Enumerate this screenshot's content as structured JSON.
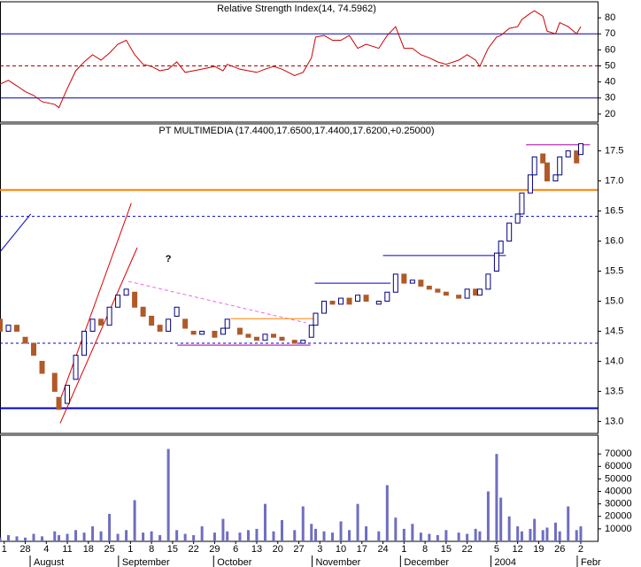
{
  "chart_data": [
    {
      "type": "line",
      "title": "Relative Strength Index(14, 74.5962)",
      "color": "#cc0000",
      "xlim": [
        -1,
        141
      ],
      "ylim": [
        15,
        90
      ],
      "yticks": [
        20,
        30,
        40,
        50,
        60,
        70,
        80
      ],
      "hlines": [
        {
          "value": 70,
          "color": "#0000aa",
          "dash": "none"
        },
        {
          "value": 50,
          "color": "#aa0000",
          "dash": "4 3"
        },
        {
          "value": 30,
          "color": "#0000aa",
          "dash": "none"
        }
      ],
      "x": [
        -1,
        1,
        3,
        5,
        7,
        9,
        12,
        13,
        15,
        17,
        19,
        21,
        23,
        25,
        27,
        29,
        31,
        33,
        35,
        37,
        39,
        41,
        43,
        45,
        47,
        50,
        52,
        53,
        56,
        58,
        60,
        62,
        64,
        66,
        69,
        71,
        73,
        74,
        76,
        78,
        80,
        82,
        84,
        86,
        89,
        91,
        93,
        95,
        97,
        99,
        101,
        103,
        105,
        108,
        110,
        112,
        113,
        115,
        117,
        118,
        120,
        122,
        123,
        125,
        126,
        128,
        129,
        131,
        132,
        134,
        136,
        137
      ],
      "values": [
        38.7,
        41,
        37.6,
        34,
        31.6,
        27.7,
        26,
        24,
        36,
        47,
        52.5,
        57,
        53.6,
        58,
        63.5,
        66,
        57,
        51,
        49.7,
        47,
        48,
        52.5,
        46,
        47,
        48,
        49.7,
        47,
        51,
        48,
        47,
        46,
        48,
        49.7,
        48,
        44,
        46,
        55,
        68,
        69,
        66,
        66,
        69,
        61,
        63.5,
        61,
        69,
        74.5,
        61,
        61,
        57,
        55,
        52.5,
        51,
        53.6,
        57,
        53.6,
        49.7,
        61,
        68,
        69,
        73.4,
        74.5,
        79,
        82.8,
        84.4,
        81,
        71.7,
        70,
        77,
        74.5,
        70,
        74.5
      ]
    },
    {
      "type": "candlestick",
      "title": "PT MULTIMEDIA (17.4400,17.6500,17.4400,17.6200,+0.25000)",
      "up_color": "#ffffff",
      "down_color": "#b05a28",
      "outline_color": "#000080",
      "xlim": [
        -1,
        141
      ],
      "ylim": [
        12.8,
        17.95
      ],
      "yticks": [
        {
          "value": 13,
          "label": "13.0"
        },
        13.5,
        {
          "value": 14,
          "label": "14.0"
        },
        14.5,
        {
          "value": 15,
          "label": "15.0"
        },
        15.5,
        {
          "value": 16,
          "label": "16.0"
        },
        16.5,
        {
          "value": 17,
          "label": "17.0"
        },
        17.5
      ],
      "hlines": [
        {
          "value": 16.85,
          "color": "#ff8000",
          "dash": "none",
          "width": 2
        },
        {
          "value": 16.41,
          "color": "#0000cc",
          "dash": "3 3",
          "width": 1
        },
        {
          "value": 14.3,
          "color": "#0000cc",
          "dash": "3 3",
          "width": 1
        },
        {
          "value": 13.22,
          "color": "#0000cc",
          "dash": "none",
          "width": 2
        }
      ],
      "trend_lines": [
        {
          "x": [
            12.7,
            30.2
          ],
          "y": [
            13.24,
            16.63
          ],
          "color": "#dd0000",
          "dash": "none"
        },
        {
          "x": [
            13.3,
            31.6
          ],
          "y": [
            12.97,
            15.89
          ],
          "color": "#dd0000",
          "dash": "none"
        },
        {
          "x": [
            -1,
            6.3
          ],
          "y": [
            15.82,
            16.45
          ],
          "color": "#0000cc",
          "dash": "none"
        },
        {
          "x": [
            29.5,
            71.7
          ],
          "y": [
            15.33,
            14.64
          ],
          "color": "#ee66ee",
          "dash": "4 3"
        },
        {
          "x": [
            41.1,
            72.8
          ],
          "y": [
            14.27,
            14.27
          ],
          "color": "#aa00aa",
          "dash": "none"
        },
        {
          "x": [
            53.8,
            73.8
          ],
          "y": [
            14.71,
            14.71
          ],
          "color": "#ff8000",
          "dash": "none"
        },
        {
          "x": [
            73.8,
            91.8
          ],
          "y": [
            15.3,
            15.3
          ],
          "color": "#0000cc",
          "dash": "none"
        },
        {
          "x": [
            90,
            119.2
          ],
          "y": [
            15.76,
            15.76
          ],
          "color": "#0000cc",
          "dash": "none"
        },
        {
          "x": [
            124,
            139.2
          ],
          "y": [
            17.6,
            17.6
          ],
          "color": "#aa00aa",
          "dash": "none"
        }
      ],
      "annotations": [
        {
          "text": "?",
          "x": 39,
          "y": 15.7,
          "color": "#dd0000"
        }
      ],
      "x": [
        -1,
        1,
        3,
        5,
        7,
        9,
        12,
        13,
        15,
        17,
        19,
        21,
        23,
        25,
        27,
        29,
        31,
        33,
        35,
        37,
        39,
        41,
        43,
        45,
        47,
        50,
        52,
        53,
        56,
        58,
        60,
        62,
        64,
        66,
        69,
        71,
        73,
        74,
        76,
        78,
        80,
        82,
        84,
        86,
        89,
        91,
        93,
        95,
        97,
        99,
        101,
        103,
        105,
        108,
        110,
        112,
        113,
        115,
        117,
        118,
        120,
        122,
        123,
        125,
        126,
        128,
        129,
        131,
        132,
        134,
        136,
        137
      ],
      "open": [
        14.7,
        14.5,
        14.6,
        14.4,
        14.3,
        14.0,
        13.8,
        13.4,
        13.3,
        13.7,
        14.1,
        14.5,
        14.7,
        14.6,
        14.9,
        15.1,
        15.15,
        14.9,
        14.75,
        14.6,
        14.5,
        14.75,
        14.7,
        14.5,
        14.45,
        14.5,
        14.45,
        14.55,
        14.55,
        14.45,
        14.4,
        14.35,
        14.45,
        14.4,
        14.35,
        14.3,
        14.4,
        14.6,
        14.8,
        15.0,
        14.95,
        15.05,
        15.0,
        15.1,
        14.95,
        15.0,
        15.15,
        15.45,
        15.3,
        15.35,
        15.25,
        15.2,
        15.15,
        15.1,
        15.05,
        15.2,
        15.1,
        15.2,
        15.5,
        15.8,
        16.0,
        16.3,
        16.45,
        16.8,
        17.1,
        17.45,
        17.3,
        17.0,
        17.1,
        17.4,
        17.5,
        17.44
      ],
      "close": [
        14.5,
        14.6,
        14.5,
        14.3,
        14.1,
        13.8,
        13.5,
        13.2,
        13.6,
        14.1,
        14.5,
        14.7,
        14.6,
        14.9,
        15.1,
        15.2,
        14.9,
        14.75,
        14.6,
        14.5,
        14.7,
        14.9,
        14.55,
        14.45,
        14.5,
        14.4,
        14.55,
        14.7,
        14.45,
        14.4,
        14.35,
        14.45,
        14.4,
        14.35,
        14.3,
        14.35,
        14.6,
        14.8,
        15.0,
        14.95,
        15.05,
        14.95,
        15.1,
        15.0,
        15.0,
        15.15,
        15.45,
        15.3,
        15.35,
        15.25,
        15.2,
        15.15,
        15.1,
        15.05,
        15.2,
        15.1,
        15.2,
        15.45,
        15.8,
        16.0,
        16.3,
        16.45,
        16.8,
        17.1,
        17.4,
        17.3,
        17.0,
        17.1,
        17.4,
        17.5,
        17.3,
        17.62
      ]
    },
    {
      "type": "bar",
      "color": "#6e6ec0",
      "xlim": [
        -1,
        141
      ],
      "ylim": [
        0,
        85000
      ],
      "yticks": [
        10000,
        20000,
        30000,
        40000,
        50000,
        60000,
        70000
      ],
      "xticks": [
        {
          "value": 0,
          "label": "1"
        },
        {
          "value": 5,
          "label": "28"
        },
        {
          "value": 10,
          "label": "4"
        },
        {
          "value": 15,
          "label": "11"
        },
        {
          "value": 20,
          "label": "18"
        },
        {
          "value": 25,
          "label": "25"
        },
        {
          "value": 30,
          "label": "1"
        },
        {
          "value": 35,
          "label": "8"
        },
        {
          "value": 40,
          "label": "15"
        },
        {
          "value": 45,
          "label": "22"
        },
        {
          "value": 50,
          "label": "29"
        },
        {
          "value": 55,
          "label": "6"
        },
        {
          "value": 60,
          "label": "13"
        },
        {
          "value": 65,
          "label": "20"
        },
        {
          "value": 70,
          "label": "27"
        },
        {
          "value": 75,
          "label": "3"
        },
        {
          "value": 80,
          "label": "10"
        },
        {
          "value": 85,
          "label": "17"
        },
        {
          "value": 90,
          "label": "24"
        },
        {
          "value": 95,
          "label": "1"
        },
        {
          "value": 100,
          "label": "8"
        },
        {
          "value": 105,
          "label": "15"
        },
        {
          "value": 110,
          "label": "22"
        },
        {
          "value": 117,
          "label": "5"
        },
        {
          "value": 122,
          "label": "12"
        },
        {
          "value": 127,
          "label": "19"
        },
        {
          "value": 132,
          "label": "26"
        },
        {
          "value": 137,
          "label": "2"
        }
      ],
      "month_labels": [
        {
          "value": 7,
          "label": "August"
        },
        {
          "value": 28,
          "label": "September"
        },
        {
          "value": 50.6,
          "label": "October"
        },
        {
          "value": 74,
          "label": "November"
        },
        {
          "value": 95,
          "label": "December"
        },
        {
          "value": 116.5,
          "label": "2004"
        },
        {
          "value": 137,
          "label": "Febr"
        }
      ],
      "x": [
        -1,
        1,
        3,
        5,
        7,
        9,
        12,
        13,
        15,
        17,
        19,
        21,
        23,
        25,
        27,
        29,
        31,
        33,
        35,
        37,
        39,
        41,
        43,
        45,
        47,
        50,
        52,
        53,
        56,
        58,
        60,
        62,
        64,
        66,
        69,
        71,
        73,
        74,
        76,
        78,
        80,
        82,
        84,
        86,
        89,
        91,
        93,
        95,
        97,
        99,
        101,
        103,
        105,
        108,
        110,
        112,
        113,
        115,
        117,
        118,
        120,
        122,
        123,
        125,
        126,
        128,
        129,
        131,
        132,
        134,
        136,
        137
      ],
      "values": [
        3000,
        5000,
        4000,
        3000,
        6000,
        4000,
        8000,
        5000,
        6000,
        9000,
        7000,
        12000,
        8000,
        22000,
        6000,
        9000,
        33000,
        7000,
        8000,
        5000,
        74000,
        9000,
        6000,
        5000,
        12000,
        7000,
        18000,
        8000,
        7000,
        9000,
        10000,
        30000,
        8000,
        17000,
        9000,
        28000,
        14000,
        10000,
        8000,
        7000,
        16000,
        9000,
        30000,
        12000,
        8000,
        45000,
        19000,
        10000,
        14000,
        7000,
        6000,
        5000,
        9000,
        7000,
        6000,
        10000,
        8000,
        40000,
        70000,
        35000,
        20000,
        12000,
        8000,
        10000,
        18000,
        9000,
        11000,
        15000,
        8000,
        28000,
        9000,
        12000
      ]
    }
  ]
}
